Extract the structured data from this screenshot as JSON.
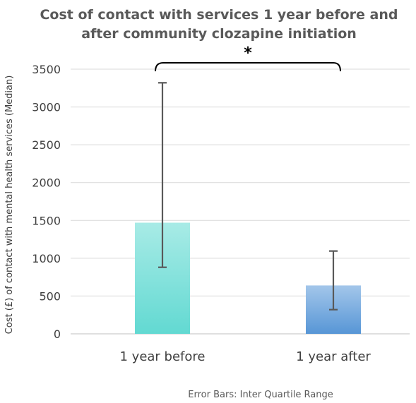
{
  "chart_data": {
    "type": "bar",
    "title_line1": "Cost of contact with services 1 year before and",
    "title_line2": "after community clozapine initiation",
    "ylabel": "Cost (£) of contact with mental health services (Median)",
    "xlabel": "",
    "ylim": [
      0,
      3500
    ],
    "yticks": [
      0,
      500,
      1000,
      1500,
      2000,
      2500,
      3000,
      3500
    ],
    "grid": true,
    "categories": [
      "1 year before",
      "1 year after"
    ],
    "values": [
      1470,
      640
    ],
    "error_low": [
      880,
      320
    ],
    "error_high": [
      3320,
      1095
    ],
    "bar_colors": [
      {
        "top": "#a8ebe6",
        "bottom": "#62d9d2"
      },
      {
        "top": "#a3c6ea",
        "bottom": "#5796d6"
      }
    ],
    "significance_marker": "*",
    "footnote": "Error Bars: Inter Quartile Range"
  }
}
